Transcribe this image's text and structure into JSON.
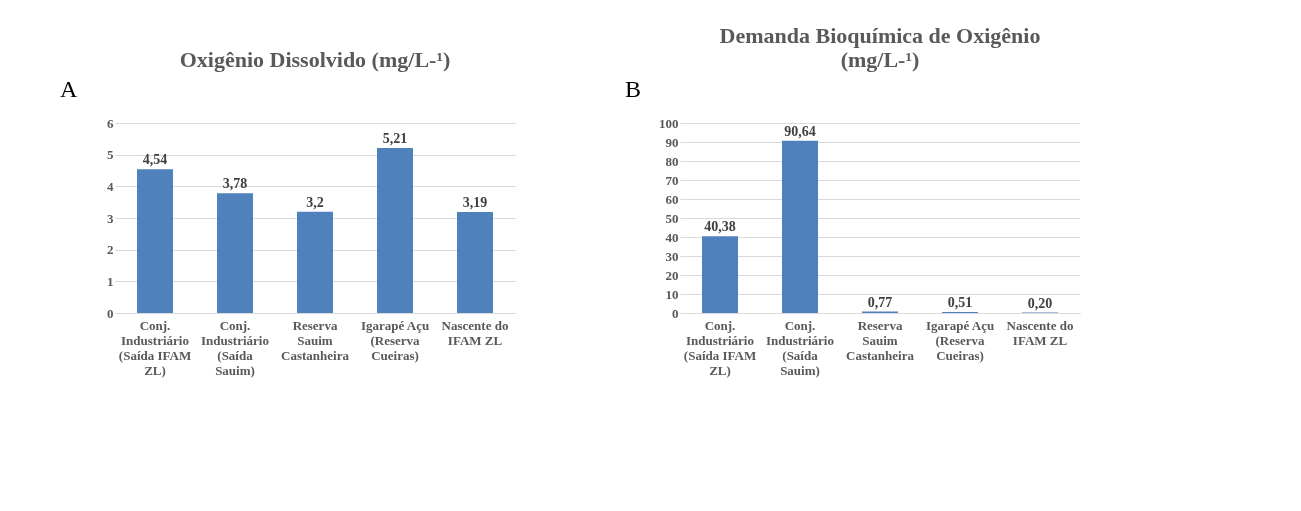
{
  "chart_data": [
    {
      "type": "bar",
      "title": "Oxigênio Dissolvido (mg/L-¹)",
      "annotations": [
        "A"
      ],
      "categories": [
        "Conj. Industriário (Saída IFAM ZL)",
        "Conj. Industriário (Saída Sauim)",
        "Reserva Sauim Castanheira",
        "Igarapé Açu (Reserva Cueiras)",
        "Nascente do IFAM ZL"
      ],
      "values": [
        4.54,
        3.78,
        3.2,
        5.21,
        3.19
      ],
      "color": "#4f81bd",
      "value_labels": [
        "4,54",
        "3,78",
        "3,2",
        "5,21",
        "3,19"
      ],
      "ylim": [
        0,
        6
      ],
      "yticks": [
        0,
        1,
        2,
        3,
        4,
        5,
        6
      ],
      "grid": "y"
    },
    {
      "type": "bar",
      "title": "Demanda Bioquímica de Oxigênio (mg/L-¹)",
      "annotations": [
        "B"
      ],
      "categories": [
        "Conj. Industriário (Saída IFAM ZL)",
        "Conj. Industriário (Saída Sauim)",
        "Reserva Sauim Castanheira",
        "Igarapé Açu (Reserva Cueiras)",
        "Nascente do IFAM ZL"
      ],
      "values": [
        40.38,
        90.64,
        0.77,
        0.51,
        0.2
      ],
      "color": "#4f81bd",
      "value_labels": [
        "40,38",
        "90,64",
        "0,77",
        "0,51",
        "0,20"
      ],
      "ylim": [
        0,
        100
      ],
      "yticks": [
        0,
        10,
        20,
        30,
        40,
        50,
        60,
        70,
        80,
        90,
        100
      ],
      "grid": "y"
    }
  ]
}
